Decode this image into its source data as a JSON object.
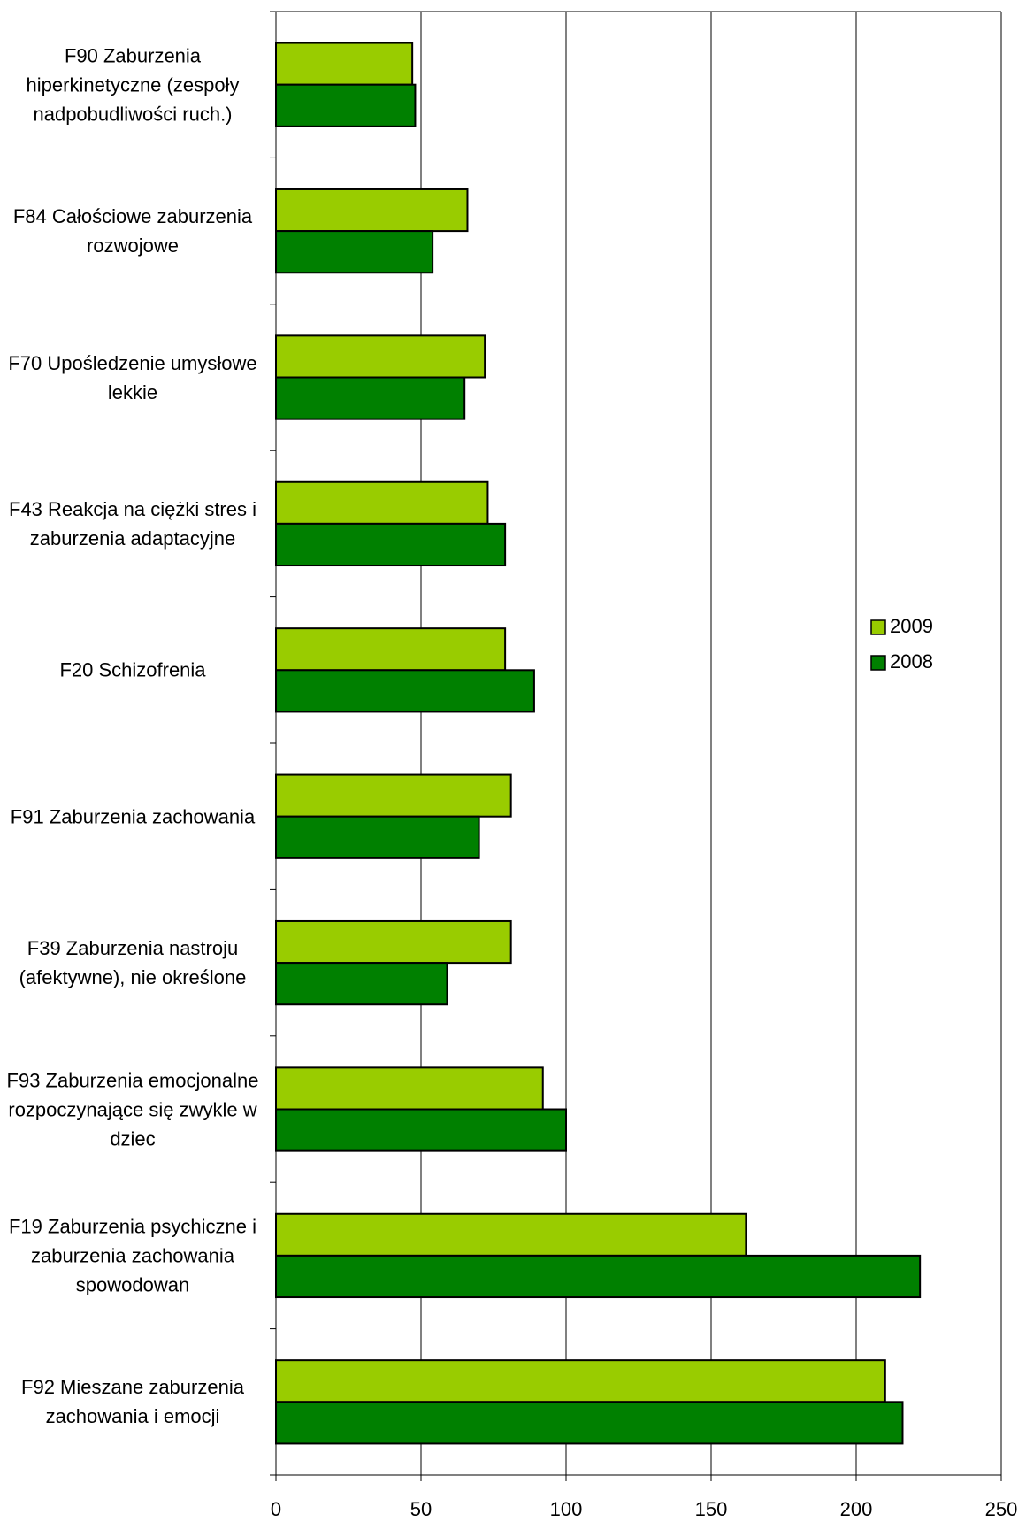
{
  "chart_data": {
    "type": "bar",
    "orientation": "horizontal",
    "categories": [
      "F90 Zaburzenia hiperkinetyczne (zespoły nadpobudliwości ruch.)",
      "F84 Całościowe zaburzenia rozwojowe",
      "F70 Upośledzenie umysłowe lekkie",
      "F43 Reakcja na ciężki stres i zaburzenia adaptacyjne",
      "F20 Schizofrenia",
      "F91 Zaburzenia zachowania",
      "F39 Zaburzenia nastroju (afektywne), nie określone",
      "F93 Zaburzenia emocjonalne rozpoczynające się zwykle w dziec",
      "F19 Zaburzenia psychiczne i zaburzenia zachowania spowodowan",
      "F92 Mieszane zaburzenia zachowania i emocji"
    ],
    "series": [
      {
        "name": "2009",
        "color": "#99cc00",
        "values": [
          47,
          66,
          72,
          73,
          79,
          81,
          81,
          92,
          162,
          210
        ]
      },
      {
        "name": "2008",
        "color": "#008000",
        "values": [
          48,
          54,
          65,
          79,
          89,
          70,
          59,
          100,
          222,
          216
        ]
      }
    ],
    "xlim": [
      0,
      250
    ],
    "xticks": [
      0,
      50,
      100,
      150,
      200,
      250
    ],
    "grid": true,
    "legend": "right"
  }
}
